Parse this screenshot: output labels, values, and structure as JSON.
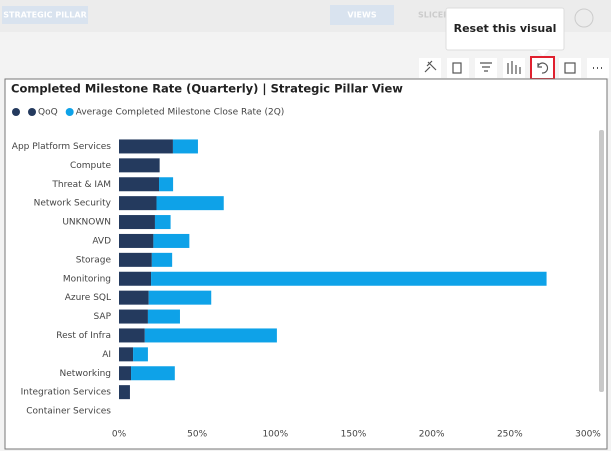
{
  "ui": {
    "top_tab": "STRATEGIC PILLAR",
    "views_button": "VIEWS",
    "slicer_label": "SLICER",
    "tooltip": "Reset this visual"
  },
  "chart_data": {
    "type": "stacked-bar-horizontal",
    "title": "Completed Milestone Rate (Quarterly) | Strategic Pillar View",
    "categories": [
      "App Platform Services",
      "Compute",
      "Threat & IAM",
      "Network Security",
      "UNKNOWN",
      "AVD",
      "Storage",
      "Monitoring",
      "Azure SQL",
      "SAP",
      "Rest of Infra",
      "AI",
      "Networking",
      "Integration Services",
      "Container Services"
    ],
    "series": [
      {
        "name": "QoQ",
        "color": "#243a5e",
        "values": [
          34.5,
          26,
          25.6,
          24,
          23,
          22,
          21,
          20.5,
          19,
          18.5,
          16.5,
          9,
          7.7,
          7,
          null
        ]
      },
      {
        "name": "Average Completed Milestone Close Rate (2Q)",
        "color": "#0ea2e8",
        "values": [
          16,
          null,
          9,
          43,
          10,
          23,
          13,
          253,
          40,
          20.5,
          84.5,
          9.5,
          28,
          null,
          null
        ]
      }
    ],
    "xlim": [
      0,
      300
    ],
    "xticks": [
      {
        "value": 0,
        "label": "0%"
      },
      {
        "value": 50,
        "label": "50%"
      },
      {
        "value": 100,
        "label": "100%"
      },
      {
        "value": 150,
        "label": "150%"
      },
      {
        "value": 200,
        "label": "200%"
      },
      {
        "value": 250,
        "label": "250%"
      },
      {
        "value": 300,
        "label": "300%"
      }
    ]
  }
}
